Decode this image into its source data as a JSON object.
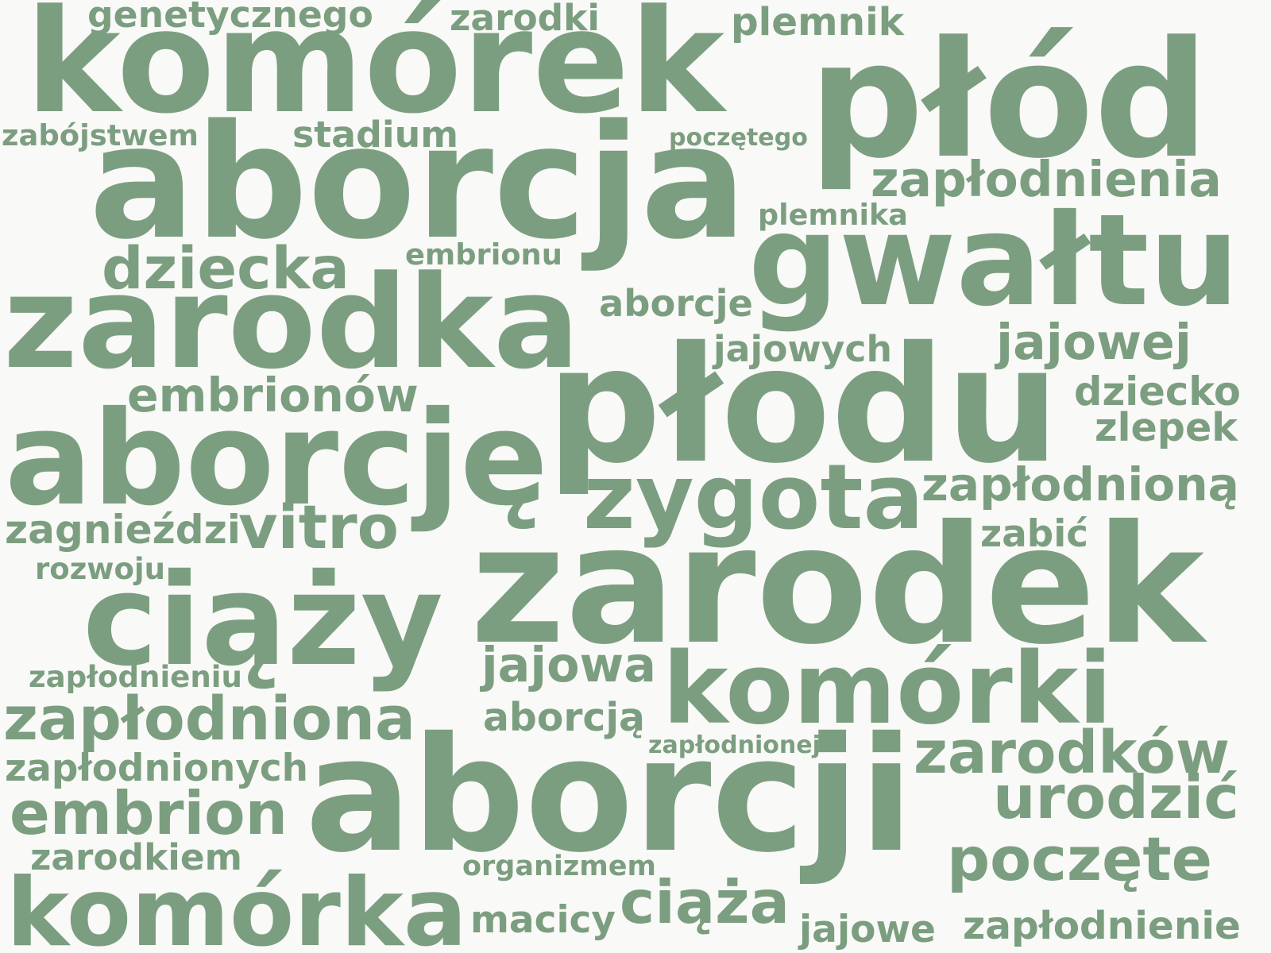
{
  "cloud": {
    "color": "#7c9e80",
    "background": "#f9f9f7",
    "words": [
      "genetycznego",
      "zarodki",
      "plemnik",
      "komórek",
      "płód",
      "zabójstwem",
      "stadium",
      "poczętego",
      "aborcja",
      "zapłodnienia",
      "plemnika",
      "gwałtu",
      "embrionu",
      "dziecka",
      "zarodka",
      "aborcje",
      "jajowych",
      "jajowej",
      "płodu",
      "embrionów",
      "dziecko",
      "zlepek",
      "aborcję",
      "zygota",
      "zapłodnioną",
      "zagnieździ",
      "vitro",
      "zabić",
      "rozwoju",
      "zarodek",
      "ciąży",
      "jajowa",
      "zapłodnieniu",
      "komórki",
      "zapłodniona",
      "aborcją",
      "zapłodnionej",
      "zapłodnionych",
      "zarodków",
      "aborcji",
      "urodzić",
      "embrion",
      "zarodkiem",
      "poczęte",
      "organizmem",
      "komórka",
      "macicy",
      "ciąża",
      "jajowe",
      "zapłodnienie"
    ]
  }
}
